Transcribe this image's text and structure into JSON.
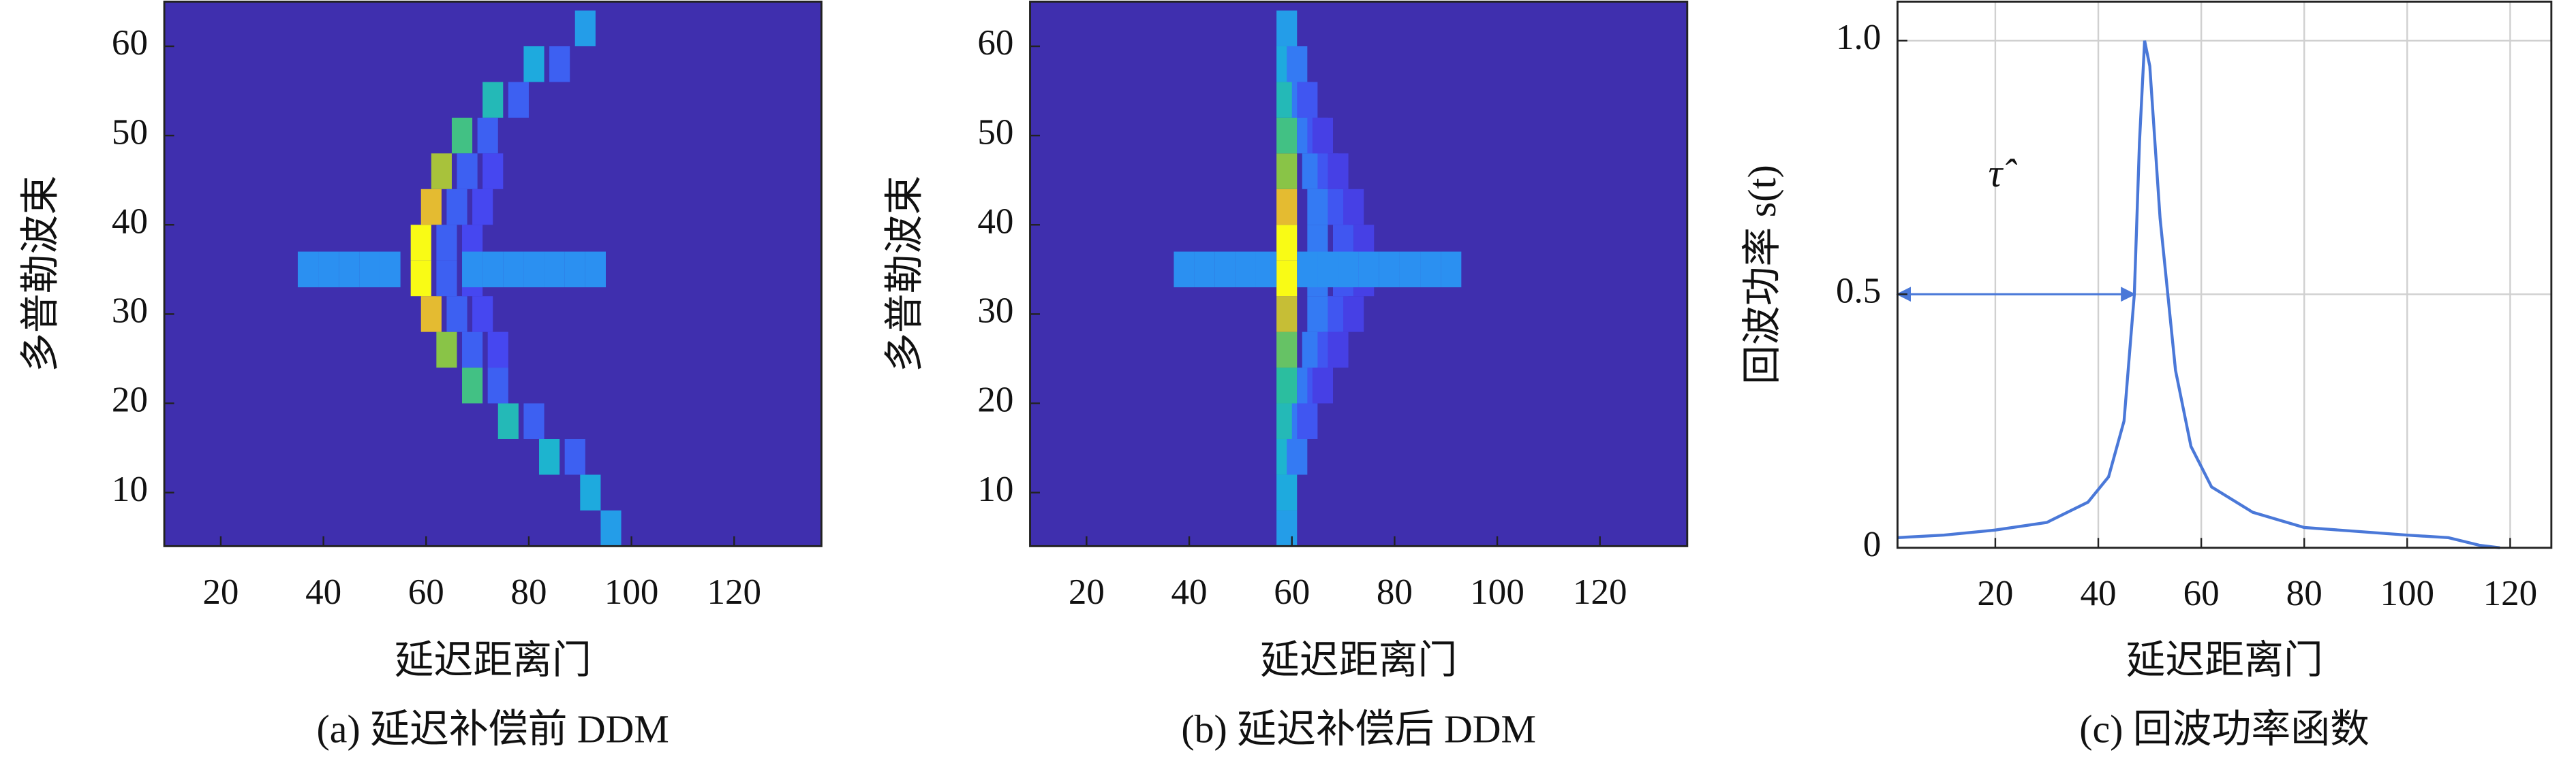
{
  "chart_data": [
    {
      "type": "heatmap",
      "caption": "(a) 延迟补偿前 DDM",
      "xlabel": "延迟距离门",
      "ylabel": "多普勒波束",
      "xlim": [
        9,
        137
      ],
      "ylim": [
        4,
        65
      ],
      "xticks": [
        20,
        40,
        60,
        80,
        100,
        120
      ],
      "yticks": [
        10,
        20,
        30,
        40,
        50,
        60
      ],
      "zlim": [
        0,
        1
      ],
      "colormap": [
        "#3f2fae",
        "#4743f0",
        "#2d8cf4",
        "#1ab2d9",
        "#2ec095",
        "#93c43e",
        "#e8ba30",
        "#f9fb15"
      ],
      "cells": {
        "x": [
          96,
          92,
          84,
          76,
          69,
          64,
          61,
          59,
          59,
          61,
          63,
          67,
          73,
          81,
          91,
          89,
          81,
          74,
          69,
          66,
          64,
          64,
          66,
          68,
          72,
          78,
          86,
          74,
          71,
          69,
          69,
          71,
          73,
          37,
          41,
          45,
          49,
          53,
          69,
          73,
          77,
          81,
          85,
          89,
          93
        ],
        "y": [
          6,
          10,
          14,
          18,
          22,
          26,
          30,
          34,
          38,
          42,
          46,
          50,
          54,
          58,
          62,
          14,
          18,
          22,
          26,
          30,
          34,
          38,
          42,
          46,
          50,
          54,
          58,
          26,
          30,
          34,
          38,
          42,
          46,
          35,
          35,
          35,
          35,
          35,
          35,
          35,
          35,
          35,
          35,
          35,
          35
        ],
        "values": [
          0.35,
          0.4,
          0.45,
          0.5,
          0.6,
          0.7,
          0.85,
          1,
          1,
          0.85,
          0.75,
          0.6,
          0.5,
          0.4,
          0.35,
          0.2,
          0.2,
          0.2,
          0.2,
          0.2,
          0.2,
          0.2,
          0.2,
          0.2,
          0.2,
          0.2,
          0.2,
          0.15,
          0.15,
          0.15,
          0.15,
          0.15,
          0.15,
          0.3,
          0.3,
          0.3,
          0.3,
          0.3,
          0.3,
          0.3,
          0.3,
          0.3,
          0.3,
          0.3,
          0.3
        ]
      }
    },
    {
      "type": "heatmap",
      "caption": "(b) 延迟补偿后 DDM",
      "xlabel": "延迟距离门",
      "ylabel": "多普勒波束",
      "xlim": [
        9,
        137
      ],
      "ylim": [
        4,
        65
      ],
      "xticks": [
        20,
        40,
        60,
        80,
        100,
        120
      ],
      "yticks": [
        10,
        20,
        30,
        40,
        50,
        60
      ],
      "zlim": [
        0,
        1
      ],
      "colormap": [
        "#3f2fae",
        "#4743f0",
        "#2d8cf4",
        "#1ab2d9",
        "#2ec095",
        "#93c43e",
        "#e8ba30",
        "#f9fb15"
      ],
      "cells": {
        "x": [
          59,
          59,
          59,
          59,
          59,
          59,
          59,
          59,
          59,
          59,
          59,
          59,
          59,
          59,
          59,
          61,
          62,
          63,
          64,
          65,
          65,
          65,
          65,
          64,
          63,
          62,
          61,
          63,
          65,
          67,
          69,
          70,
          70,
          69,
          67,
          65,
          63,
          66,
          69,
          72,
          74,
          74,
          72,
          69,
          66,
          39,
          43,
          47,
          51,
          55,
          63,
          67,
          71,
          75,
          79,
          83,
          87,
          91
        ],
        "y": [
          6,
          10,
          14,
          18,
          22,
          26,
          30,
          34,
          38,
          42,
          46,
          50,
          54,
          58,
          62,
          14,
          18,
          22,
          26,
          30,
          34,
          38,
          42,
          46,
          50,
          54,
          58,
          18,
          22,
          26,
          30,
          34,
          38,
          42,
          46,
          50,
          54,
          22,
          26,
          30,
          34,
          38,
          42,
          46,
          50,
          35,
          35,
          35,
          35,
          35,
          35,
          35,
          35,
          35,
          35,
          35,
          35,
          35
        ],
        "values": [
          0.35,
          0.4,
          0.45,
          0.5,
          0.55,
          0.65,
          0.8,
          1,
          1,
          0.85,
          0.7,
          0.6,
          0.5,
          0.4,
          0.35,
          0.25,
          0.25,
          0.25,
          0.25,
          0.25,
          0.25,
          0.25,
          0.25,
          0.25,
          0.25,
          0.25,
          0.25,
          0.18,
          0.18,
          0.18,
          0.18,
          0.18,
          0.18,
          0.18,
          0.18,
          0.18,
          0.18,
          0.12,
          0.12,
          0.12,
          0.12,
          0.12,
          0.12,
          0.12,
          0.12,
          0.3,
          0.3,
          0.3,
          0.3,
          0.3,
          0.3,
          0.3,
          0.3,
          0.3,
          0.3,
          0.3,
          0.3,
          0.3
        ]
      }
    },
    {
      "type": "line",
      "caption": "(c) 回波功率函数",
      "xlabel": "延迟距离门",
      "ylabel": "回波功率 s(t)",
      "xlim": [
        1,
        128
      ],
      "ylim": [
        0,
        1.077
      ],
      "xticks": [
        20,
        40,
        60,
        80,
        100,
        120
      ],
      "yticks": [
        0,
        0.5,
        {
          "value": 1,
          "label": "1.0"
        }
      ],
      "grid": true,
      "x": [
        1,
        10,
        20,
        30,
        38,
        42,
        45,
        47,
        48,
        49,
        50,
        52,
        55,
        58,
        62,
        70,
        80,
        100,
        108,
        114,
        118
      ],
      "series": [
        {
          "color": "#4a78d8",
          "values": [
            0.02,
            0.025,
            0.035,
            0.05,
            0.09,
            0.14,
            0.25,
            0.5,
            0.8,
            1,
            0.95,
            0.65,
            0.35,
            0.2,
            0.12,
            0.07,
            0.04,
            0.025,
            0.02,
            0.005,
            0
          ]
        }
      ],
      "annotations": [
        {
          "text": "τ̂",
          "x": 20,
          "y": 0.73
        }
      ],
      "arrow": {
        "x": [
          1,
          47
        ],
        "y": 0.5,
        "color": "#4a78d8"
      }
    }
  ]
}
